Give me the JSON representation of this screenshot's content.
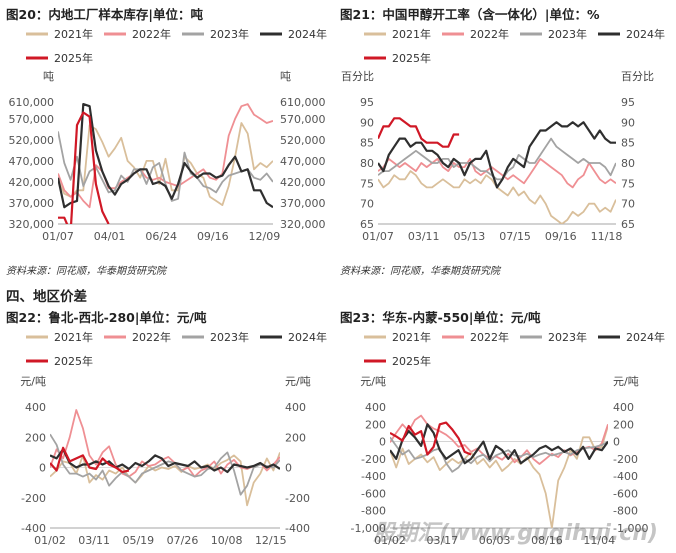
{
  "colors": {
    "2021": "#d9bf9b",
    "2022": "#ef8f93",
    "2023": "#a3a3a3",
    "2024": "#2f2f2f",
    "2025": "#d01826"
  },
  "source_text": "资料来源：同花顺，华泰期货研究院",
  "section_heading": "四、地区价差",
  "watermark": "股期汇(www.guqihui.cn)",
  "chart_data": [
    {
      "title": "图20：内地工厂样本库存|单位：吨",
      "type": "line",
      "ylabel_left": "吨",
      "ylabel_right": "吨",
      "ylim": [
        320000,
        610000
      ],
      "yticks": [
        "610,000",
        "570,000",
        "520,000",
        "470,000",
        "420,000",
        "370,000",
        "320,000"
      ],
      "ytick_values": [
        610000,
        570000,
        520000,
        470000,
        420000,
        370000,
        320000
      ],
      "xtick_labels": [
        "01/07",
        "04/01",
        "06/24",
        "09/16",
        "12/09"
      ],
      "series": [
        {
          "name": "2021年",
          "color_key": "2021",
          "values": [
            425000,
            392000,
            385000,
            400000,
            400000,
            555000,
            545000,
            515000,
            480000,
            500000,
            525000,
            470000,
            455000,
            430000,
            470000,
            470000,
            415000,
            475000,
            400000,
            400000,
            480000,
            465000,
            440000,
            430000,
            385000,
            375000,
            365000,
            410000,
            480000,
            560000,
            535000,
            450000,
            465000,
            455000,
            470000
          ]
        },
        {
          "name": "2022年",
          "color_key": "2022",
          "values": [
            440000,
            400000,
            385000,
            395000,
            375000,
            360000,
            460000,
            445000,
            405000,
            405000,
            420000,
            430000,
            440000,
            450000,
            430000,
            425000,
            430000,
            420000,
            415000,
            410000,
            420000,
            430000,
            440000,
            450000,
            430000,
            425000,
            440000,
            530000,
            570000,
            600000,
            605000,
            580000,
            570000,
            560000,
            565000
          ]
        },
        {
          "name": "2023年",
          "color_key": "2023",
          "values": [
            540000,
            465000,
            425000,
            480000,
            410000,
            445000,
            455000,
            425000,
            395000,
            400000,
            435000,
            420000,
            450000,
            450000,
            415000,
            455000,
            465000,
            415000,
            375000,
            380000,
            490000,
            440000,
            430000,
            410000,
            405000,
            395000,
            420000,
            435000,
            440000,
            445000,
            450000,
            430000,
            425000,
            440000,
            420000
          ]
        },
        {
          "name": "2024年",
          "color_key": "2024",
          "values": [
            430000,
            360000,
            370000,
            375000,
            605000,
            600000,
            495000,
            445000,
            410000,
            390000,
            415000,
            425000,
            440000,
            450000,
            450000,
            415000,
            420000,
            410000,
            380000,
            415000,
            465000,
            445000,
            430000,
            440000,
            440000,
            430000,
            435000,
            460000,
            480000,
            445000,
            450000,
            400000,
            400000,
            370000,
            360000
          ]
        },
        {
          "name": "2025年",
          "color_key": "2025",
          "values": [
            335000,
            335000,
            300000,
            555000,
            585000,
            575000,
            415000,
            350000,
            320000
          ]
        }
      ]
    },
    {
      "title": "图21：中国甲醇开工率（含一体化）|单位：%",
      "type": "line",
      "ylabel_left": "百分比",
      "ylabel_right": "百分比",
      "ylim": [
        65,
        95
      ],
      "yticks": [
        "95",
        "90",
        "85",
        "80",
        "75",
        "70",
        "65"
      ],
      "ytick_values": [
        95,
        90,
        85,
        80,
        75,
        70,
        65
      ],
      "xtick_labels": [
        "01/07",
        "03/11",
        "05/13",
        "07/15",
        "09/16",
        "11/18"
      ],
      "series": [
        {
          "name": "2021年",
          "color_key": "2021",
          "values": [
            76,
            74,
            75,
            77,
            76,
            76,
            78,
            77,
            75,
            74,
            74,
            75,
            76,
            75,
            74,
            74,
            76,
            75,
            76,
            75,
            77,
            76,
            74,
            73,
            72,
            74,
            72,
            73,
            71,
            70,
            72,
            70,
            67,
            66,
            65,
            66,
            68,
            67,
            68,
            70,
            70,
            68,
            69,
            68,
            71
          ]
        },
        {
          "name": "2022年",
          "color_key": "2022",
          "values": [
            78,
            79,
            81,
            80,
            79,
            80,
            79,
            78,
            80,
            79,
            80,
            81,
            79,
            78,
            80,
            79,
            79,
            81,
            78,
            77,
            78,
            79,
            78,
            77,
            76,
            77,
            76,
            75,
            77,
            79,
            81,
            80,
            79,
            78,
            77,
            75,
            74,
            76,
            77,
            80,
            78,
            76,
            75,
            76,
            75
          ]
        },
        {
          "name": "2023年",
          "color_key": "2023",
          "values": [
            77,
            78,
            78,
            79,
            80,
            81,
            82,
            83,
            82,
            81,
            80,
            80,
            81,
            81,
            79,
            80,
            80,
            80,
            79,
            78,
            78,
            77,
            76,
            76,
            78,
            79,
            82,
            81,
            80,
            80,
            82,
            84,
            86,
            84,
            83,
            82,
            81,
            80,
            81,
            80,
            80,
            80,
            79,
            77,
            80
          ]
        },
        {
          "name": "2024年",
          "color_key": "2024",
          "values": [
            80,
            78,
            82,
            84,
            86,
            86,
            84,
            85,
            85,
            83,
            83,
            82,
            80,
            79,
            81,
            80,
            77,
            80,
            81,
            81,
            83,
            78,
            74,
            76,
            79,
            81,
            80,
            79,
            84,
            86,
            88,
            88,
            89,
            90,
            89,
            89,
            90,
            89,
            90,
            88,
            86,
            88,
            86,
            85,
            85
          ]
        },
        {
          "name": "2025年",
          "color_key": "2025",
          "values": [
            86,
            89,
            89,
            91,
            91,
            90,
            89,
            89,
            86,
            85,
            85,
            85,
            84,
            84,
            87,
            87
          ]
        }
      ]
    },
    {
      "title": "图22：鲁北-西北-280|单位：元/吨",
      "type": "line",
      "ylabel_left": "元/吨",
      "ylabel_right": "元/吨",
      "ylim": [
        -400,
        400
      ],
      "yticks": [
        "400",
        "200",
        "0",
        "-200",
        "-400"
      ],
      "ytick_values": [
        400,
        200,
        0,
        -200,
        -400
      ],
      "xtick_labels": [
        "01/02",
        "03/11",
        "05/19",
        "07/26",
        "10/08",
        "12/15"
      ],
      "series": [
        {
          "name": "2021年",
          "color_key": "2021",
          "values": [
            -60,
            -20,
            40,
            30,
            -40,
            80,
            -100,
            -50,
            -80,
            -20,
            -40,
            0,
            -60,
            -100,
            -50,
            10,
            -20,
            0,
            -10,
            10,
            -30,
            10,
            -10,
            0,
            20,
            -10,
            30,
            50,
            80,
            40,
            -250,
            -100,
            -40,
            60,
            -20,
            100
          ]
        },
        {
          "name": "2022年",
          "color_key": "2022",
          "values": [
            0,
            120,
            60,
            200,
            380,
            260,
            80,
            20,
            100,
            140,
            20,
            -40,
            -60,
            -30,
            40,
            10,
            20,
            50,
            70,
            30,
            -20,
            0,
            -60,
            -20,
            0,
            40,
            -40,
            20,
            50,
            0,
            -10,
            10,
            30,
            -20,
            20,
            70
          ]
        },
        {
          "name": "2023年",
          "color_key": "2023",
          "values": [
            220,
            150,
            20,
            -40,
            -40,
            -60,
            -40,
            -80,
            -20,
            -120,
            -70,
            -30,
            -60,
            -100,
            -40,
            -20,
            0,
            20,
            40,
            30,
            -20,
            -40,
            -60,
            -50,
            -10,
            0,
            60,
            100,
            -20,
            -180,
            -120,
            0,
            20,
            10,
            0,
            50
          ]
        },
        {
          "name": "2024年",
          "color_key": "2024",
          "values": [
            80,
            60,
            120,
            30,
            0,
            20,
            20,
            40,
            20,
            40,
            0,
            20,
            -10,
            30,
            10,
            40,
            80,
            60,
            10,
            30,
            20,
            10,
            40,
            0,
            10,
            -20,
            0,
            -30,
            20,
            10,
            0,
            10,
            30,
            0,
            20,
            -10
          ]
        },
        {
          "name": "2025年",
          "color_key": "2025",
          "values": [
            30,
            -20,
            130,
            40,
            60,
            80,
            0,
            -10,
            60,
            20,
            0,
            -30,
            -20
          ]
        }
      ]
    },
    {
      "title": "图23：华东-内蒙-550|单位：元/吨",
      "type": "line",
      "ylabel_left": "元/吨",
      "ylabel_right": "元/吨",
      "ylim": [
        -1000,
        400
      ],
      "yticks": [
        "400",
        "200",
        "0",
        "-200",
        "-400",
        "-600",
        "-800",
        "-1,000"
      ],
      "ytick_values": [
        400,
        200,
        0,
        -200,
        -400,
        -600,
        -800,
        -1000
      ],
      "xtick_labels": [
        "01/02",
        "03/17",
        "06/03",
        "08/16",
        "11/04"
      ],
      "series": [
        {
          "name": "2021年",
          "color_key": "2021",
          "values": [
            -100,
            -300,
            -80,
            -260,
            -200,
            -150,
            -240,
            -180,
            -330,
            -260,
            -200,
            -250,
            -200,
            -120,
            -260,
            -200,
            -300,
            -220,
            -340,
            -280,
            -200,
            -260,
            -180,
            -300,
            -380,
            -600,
            -1000,
            -450,
            -300,
            -100,
            -200,
            50,
            50,
            -100,
            -60,
            180
          ]
        },
        {
          "name": "2022年",
          "color_key": "2022",
          "values": [
            -10,
            100,
            200,
            120,
            250,
            300,
            200,
            150,
            120,
            80,
            20,
            -60,
            -40,
            -120,
            -80,
            -150,
            -200,
            -170,
            -210,
            -140,
            -240,
            -180,
            -100,
            -200,
            -260,
            -200,
            -140,
            -180,
            -100,
            -160,
            -120,
            -80,
            -60,
            -100,
            -20,
            200
          ]
        },
        {
          "name": "2023年",
          "color_key": "2023",
          "values": [
            50,
            -50,
            -150,
            -100,
            -200,
            -180,
            -150,
            -100,
            -80,
            -250,
            -350,
            -300,
            -200,
            -250,
            -180,
            -150,
            -230,
            -160,
            -130,
            -100,
            -160,
            -170,
            -140,
            -180,
            -150,
            -130,
            -160,
            -140,
            -120,
            -150,
            -100,
            -80,
            -70,
            -60,
            -40,
            0
          ]
        },
        {
          "name": "2024年",
          "color_key": "2024",
          "values": [
            -100,
            -200,
            20,
            120,
            50,
            -50,
            200,
            100,
            -100,
            -200,
            -150,
            -100,
            -250,
            -200,
            -100,
            0,
            -200,
            -50,
            -100,
            -200,
            -100,
            -250,
            -200,
            -150,
            -80,
            -50,
            -100,
            -60,
            -120,
            -80,
            -150,
            -60,
            -200,
            -80,
            -100,
            0
          ]
        },
        {
          "name": "2025年",
          "color_key": "2025",
          "values": [
            100,
            60,
            10,
            180,
            80,
            120,
            -150,
            -60,
            200,
            220,
            140,
            40,
            -120,
            -150
          ]
        }
      ]
    }
  ]
}
